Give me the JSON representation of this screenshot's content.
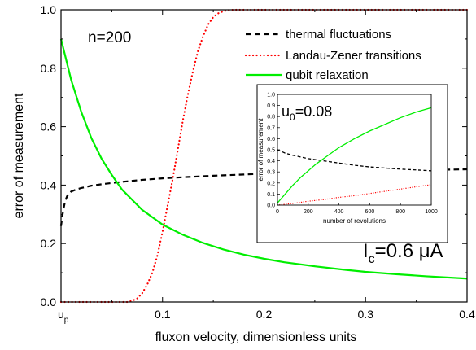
{
  "chart_data": [
    {
      "type": "line",
      "role": "main",
      "xlabel": "fluxon velocity, dimensionless units",
      "ylabel": "error of measurement",
      "xlim": [
        0.0,
        0.4
      ],
      "ylim": [
        0.0,
        1.0
      ],
      "x_ticks": [
        {
          "value": 0.1,
          "label": "0.1"
        },
        {
          "value": 0.2,
          "label": "0.2"
        },
        {
          "value": 0.3,
          "label": "0.3"
        },
        {
          "value": 0.4,
          "label": "0.4"
        }
      ],
      "x_origin_label": {
        "main": "u",
        "sub": "p"
      },
      "y_ticks": [
        {
          "value": 0.0,
          "label": "0.0"
        },
        {
          "value": 0.2,
          "label": "0.2"
        },
        {
          "value": 0.4,
          "label": "0.4"
        },
        {
          "value": 0.6,
          "label": "0.6"
        },
        {
          "value": 0.8,
          "label": "0.8"
        },
        {
          "value": 1.0,
          "label": "1.0"
        }
      ],
      "grid": false,
      "legend_position": "top-right",
      "annotations": {
        "n_label": "n=200",
        "ic_main": "I",
        "ic_sub": "c",
        "ic_value": "=0.6 μA"
      },
      "series": [
        {
          "name": "thermal fluctuations",
          "color": "#000000",
          "style": "dashed",
          "x": [
            0.0,
            0.002,
            0.004,
            0.006,
            0.008,
            0.01,
            0.015,
            0.02,
            0.03,
            0.04,
            0.05,
            0.06,
            0.08,
            0.1,
            0.12,
            0.15,
            0.2,
            0.25,
            0.3,
            0.35,
            0.4
          ],
          "y": [
            0.26,
            0.31,
            0.345,
            0.362,
            0.372,
            0.378,
            0.385,
            0.39,
            0.398,
            0.403,
            0.407,
            0.411,
            0.418,
            0.423,
            0.427,
            0.432,
            0.439,
            0.444,
            0.448,
            0.451,
            0.454
          ]
        },
        {
          "name": "Landau-Zener transitions",
          "color": "#ff0000",
          "style": "dotted",
          "x": [
            0.0,
            0.04,
            0.055,
            0.065,
            0.07,
            0.075,
            0.08,
            0.085,
            0.09,
            0.095,
            0.1,
            0.105,
            0.11,
            0.115,
            0.12,
            0.125,
            0.13,
            0.135,
            0.14,
            0.145,
            0.15,
            0.155,
            0.16,
            0.165,
            0.17,
            0.175,
            0.18,
            0.19,
            0.2,
            0.25,
            0.3,
            0.35,
            0.4
          ],
          "y": [
            0.0,
            0.0,
            0.0,
            0.0,
            0.004,
            0.012,
            0.03,
            0.06,
            0.1,
            0.16,
            0.24,
            0.33,
            0.42,
            0.52,
            0.62,
            0.71,
            0.79,
            0.86,
            0.91,
            0.95,
            0.975,
            0.988,
            0.995,
            0.999,
            1.0,
            1.0,
            1.0,
            1.0,
            1.0,
            1.0,
            1.0,
            1.0,
            1.0
          ]
        },
        {
          "name": "qubit relaxation",
          "color": "#00ee00",
          "style": "solid",
          "x": [
            0.0,
            0.01,
            0.02,
            0.03,
            0.04,
            0.05,
            0.06,
            0.07,
            0.08,
            0.09,
            0.1,
            0.12,
            0.14,
            0.16,
            0.18,
            0.2,
            0.22,
            0.25,
            0.28,
            0.3,
            0.33,
            0.36,
            0.4
          ],
          "y": [
            0.9,
            0.76,
            0.65,
            0.56,
            0.49,
            0.435,
            0.385,
            0.35,
            0.315,
            0.29,
            0.265,
            0.23,
            0.202,
            0.18,
            0.162,
            0.148,
            0.136,
            0.122,
            0.11,
            0.103,
            0.095,
            0.088,
            0.08
          ]
        }
      ]
    },
    {
      "type": "line",
      "role": "inset",
      "xlabel": "number of revolutions",
      "ylabel": "error of measurement",
      "xlim": [
        0,
        1000
      ],
      "ylim": [
        0.0,
        1.0
      ],
      "x_ticks": [
        {
          "value": 0,
          "label": "0"
        },
        {
          "value": 200,
          "label": "200"
        },
        {
          "value": 400,
          "label": "400"
        },
        {
          "value": 600,
          "label": "600"
        },
        {
          "value": 800,
          "label": "800"
        },
        {
          "value": 1000,
          "label": "1000"
        }
      ],
      "y_ticks": [
        {
          "value": 0.0,
          "label": "0.0"
        },
        {
          "value": 0.1,
          "label": "0.1"
        },
        {
          "value": 0.2,
          "label": "0.2"
        },
        {
          "value": 0.3,
          "label": "0.3"
        },
        {
          "value": 0.4,
          "label": "0.4"
        },
        {
          "value": 0.5,
          "label": "0.5"
        },
        {
          "value": 0.6,
          "label": "0.6"
        },
        {
          "value": 0.7,
          "label": "0.7"
        },
        {
          "value": 0.8,
          "label": "0.8"
        },
        {
          "value": 0.9,
          "label": "0.9"
        },
        {
          "value": 1.0,
          "label": "1.0"
        }
      ],
      "annotation": {
        "main": "u",
        "sub": "0",
        "value": "=0.08"
      },
      "series": [
        {
          "color": "#000000",
          "style": "dashed",
          "x": [
            0,
            50,
            100,
            200,
            300,
            400,
            500,
            600,
            700,
            800,
            900,
            1000
          ],
          "y": [
            0.5,
            0.47,
            0.45,
            0.42,
            0.4,
            0.38,
            0.36,
            0.345,
            0.335,
            0.325,
            0.318,
            0.31
          ]
        },
        {
          "color": "#ff0000",
          "style": "dotted",
          "x": [
            0,
            100,
            200,
            300,
            400,
            500,
            600,
            700,
            800,
            900,
            1000
          ],
          "y": [
            0.0,
            0.015,
            0.035,
            0.05,
            0.07,
            0.085,
            0.105,
            0.125,
            0.145,
            0.165,
            0.185
          ]
        },
        {
          "color": "#00ee00",
          "style": "solid",
          "x": [
            0,
            50,
            100,
            150,
            200,
            250,
            300,
            400,
            500,
            600,
            700,
            800,
            900,
            1000
          ],
          "y": [
            0.02,
            0.1,
            0.18,
            0.25,
            0.31,
            0.37,
            0.42,
            0.52,
            0.6,
            0.67,
            0.73,
            0.79,
            0.84,
            0.88
          ]
        }
      ]
    }
  ]
}
